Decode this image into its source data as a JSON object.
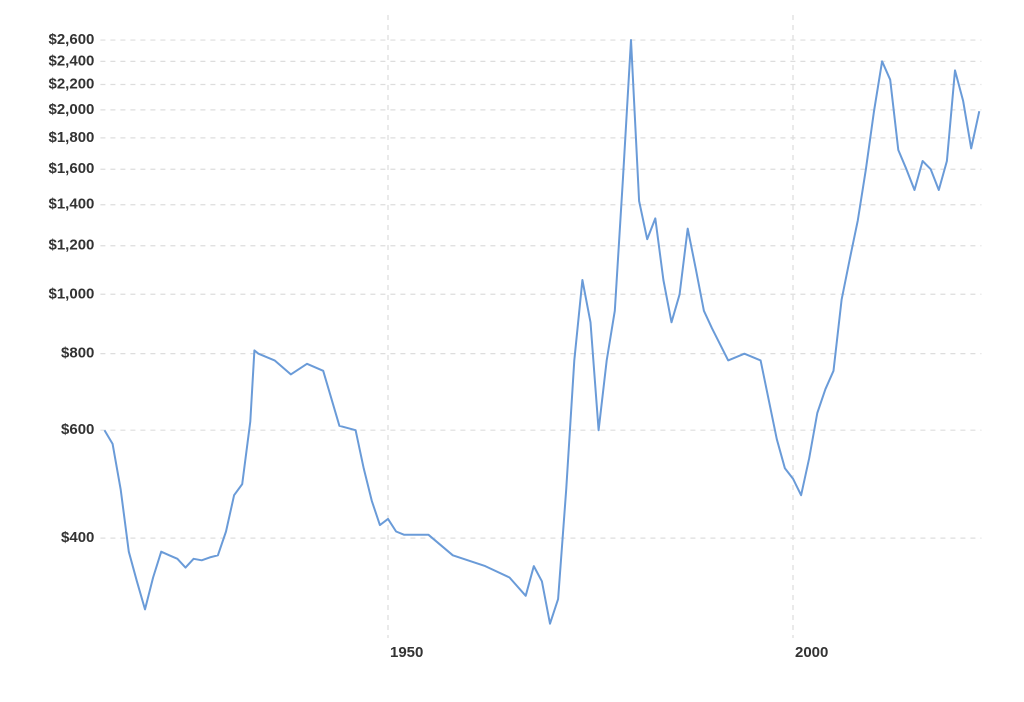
{
  "chart_data": {
    "type": "line",
    "log_scale": true,
    "grid": true,
    "x": [
      1915,
      1916,
      1917,
      1918,
      1919,
      1920,
      1921,
      1922,
      1923,
      1924,
      1925,
      1926,
      1927,
      1928,
      1929,
      1930,
      1931,
      1932,
      1933,
      1933.5,
      1934,
      1936,
      1938,
      1940,
      1942,
      1944,
      1946,
      1947,
      1948,
      1949,
      1950,
      1951,
      1952,
      1955,
      1958,
      1962,
      1965,
      1967,
      1968,
      1969,
      1970,
      1971,
      1972,
      1973,
      1974,
      1975,
      1976,
      1977,
      1978,
      1979,
      1980,
      1981,
      1982,
      1983,
      1984,
      1985,
      1986,
      1987,
      1988,
      1989,
      1990,
      1992,
      1994,
      1996,
      1998,
      1999,
      2000,
      2001,
      2002,
      2003,
      2004,
      2005,
      2006,
      2007,
      2008,
      2009,
      2010,
      2011,
      2012,
      2013,
      2014,
      2015,
      2016,
      2017,
      2018,
      2019,
      2020,
      2021,
      2022,
      2023
    ],
    "series": [
      {
        "color": "#6a9bd8",
        "values": [
          600,
          570,
          480,
          380,
          340,
          306,
          345,
          380,
          375,
          370,
          358,
          370,
          368,
          372,
          375,
          410,
          470,
          490,
          620,
          810,
          800,
          780,
          740,
          770,
          750,
          610,
          600,
          520,
          460,
          420,
          430,
          410,
          405,
          405,
          375,
          360,
          345,
          322,
          360,
          340,
          290,
          318,
          480,
          780,
          1055,
          900,
          600,
          780,
          940,
          1540,
          2600,
          1420,
          1230,
          1330,
          1055,
          900,
          1000,
          1280,
          1100,
          940,
          880,
          780,
          800,
          780,
          580,
          520,
          500,
          470,
          540,
          640,
          700,
          750,
          980,
          1140,
          1320,
          1600,
          1990,
          2400,
          2240,
          1720,
          1600,
          1480,
          1650,
          1600,
          1480,
          1650,
          2320,
          2070,
          1730,
          1990
        ]
      }
    ],
    "xlim": [
      1914,
      2024
    ],
    "xticks": [
      1950,
      2000
    ],
    "ylim": [
      280,
      2700
    ],
    "yticks": [
      {
        "value": 400,
        "label": "$400"
      },
      {
        "value": 600,
        "label": "$600"
      },
      {
        "value": 800,
        "label": "$800"
      },
      {
        "value": 1000,
        "label": "$1,000"
      },
      {
        "value": 1200,
        "label": "$1,200"
      },
      {
        "value": 1400,
        "label": "$1,400"
      },
      {
        "value": 1600,
        "label": "$1,600"
      },
      {
        "value": 1800,
        "label": "$1,800"
      },
      {
        "value": 2000,
        "label": "$2,000"
      },
      {
        "value": 2200,
        "label": "$2,200"
      },
      {
        "value": 2400,
        "label": "$2,400"
      },
      {
        "value": 2600,
        "label": "$2,600"
      }
    ]
  }
}
